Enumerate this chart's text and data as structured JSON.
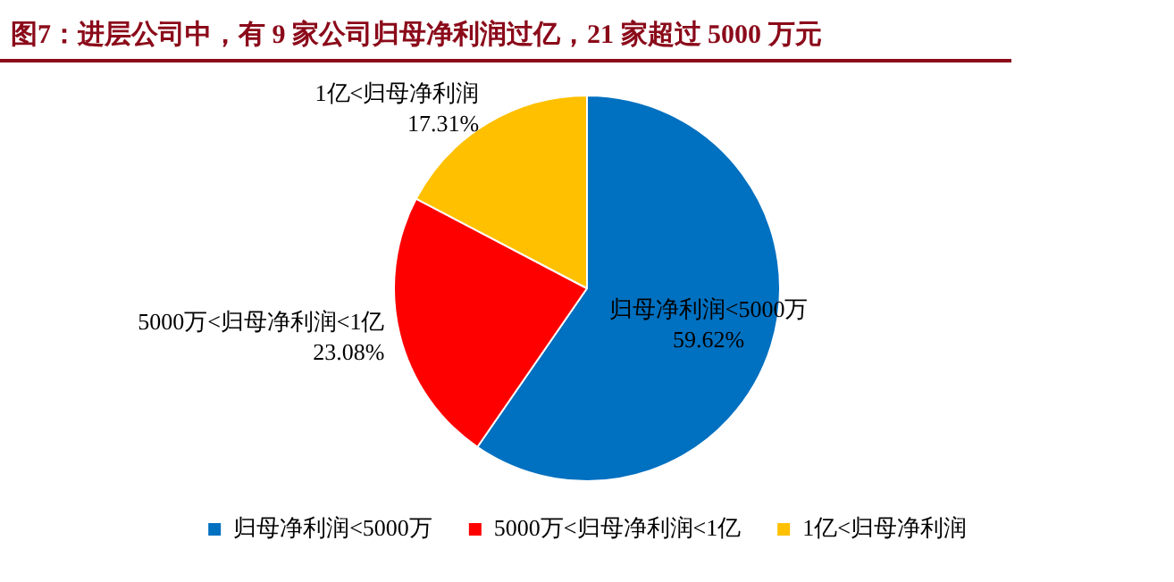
{
  "chart_data": {
    "type": "pie",
    "title": "图7：进层公司中，有 9 家公司归母净利润过亿，21 家超过 5000 万元",
    "categories": [
      "归母净利润<5000万",
      "5000万<归母净利润<1亿",
      "1亿<归母净利润"
    ],
    "values": [
      59.62,
      23.08,
      17.31
    ],
    "colors": [
      "#0070c0",
      "#ff0000",
      "#ffc000"
    ],
    "value_labels": [
      "59.62%",
      "23.08%",
      "17.31%"
    ],
    "legend": "bottom"
  }
}
